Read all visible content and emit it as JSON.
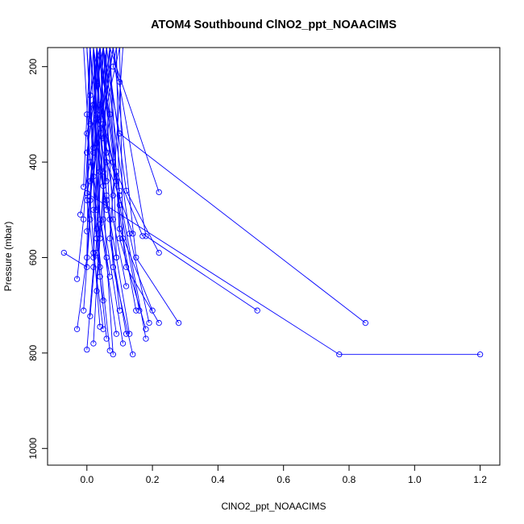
{
  "chart_data": {
    "type": "line",
    "title": "ATOM4 Southbound ClNO2_ppt_NOAACIMS",
    "xlabel": "ClNO2_ppt_NOAACIMS",
    "ylabel": "Pressure (mbar)",
    "xlim": [
      -0.12,
      1.26
    ],
    "ylim": [
      1035,
      160
    ],
    "y_reversed": true,
    "grid": false,
    "legend": "none",
    "x_ticks": [
      "0.0",
      "0.2",
      "0.4",
      "0.6",
      "0.8",
      "1.0",
      "1.2"
    ],
    "x_tick_values": [
      0,
      0.2,
      0.4,
      0.6,
      0.8,
      1.0,
      1.2
    ],
    "y_ticks": [
      "200",
      "400",
      "600",
      "800",
      "1000"
    ],
    "y_tick_values": [
      200,
      400,
      600,
      800,
      1000
    ],
    "series_color": "#0000ff",
    "marker": "open-circle",
    "profiles": [
      [
        [
          1.2,
          803
        ],
        [
          0.77,
          803
        ],
        [
          0.0,
          465
        ],
        [
          0.1,
          160
        ]
      ],
      [
        [
          0.85,
          737
        ],
        [
          0.1,
          340
        ],
        [
          0.05,
          160
        ]
      ],
      [
        [
          0.52,
          711
        ],
        [
          0.18,
          555
        ],
        [
          0.08,
          160
        ]
      ],
      [
        [
          0.22,
          463
        ],
        [
          0.07,
          160
        ]
      ],
      [
        [
          0.22,
          590
        ],
        [
          0.12,
          460
        ],
        [
          0.06,
          160
        ]
      ],
      [
        [
          0.28,
          737
        ],
        [
          0.15,
          600
        ],
        [
          0.08,
          160
        ]
      ],
      [
        [
          0.22,
          737
        ],
        [
          0.12,
          620
        ],
        [
          0.04,
          160
        ]
      ],
      [
        [
          0.2,
          711
        ],
        [
          0.1,
          540
        ],
        [
          0.09,
          160
        ]
      ],
      [
        [
          0.19,
          737
        ],
        [
          0.13,
          550
        ],
        [
          0.05,
          160
        ]
      ],
      [
        [
          0.18,
          770
        ],
        [
          0.1,
          470
        ],
        [
          0.04,
          160
        ]
      ],
      [
        [
          0.18,
          750
        ],
        [
          0.1,
          560
        ],
        [
          0.07,
          160
        ]
      ],
      [
        [
          0.17,
          555
        ],
        [
          0.09,
          420
        ],
        [
          0.05,
          160
        ]
      ],
      [
        [
          0.16,
          711
        ],
        [
          0.1,
          490
        ],
        [
          0.02,
          160
        ]
      ],
      [
        [
          0.14,
          803
        ],
        [
          0.08,
          620
        ],
        [
          0.04,
          160
        ]
      ],
      [
        [
          0.14,
          550
        ],
        [
          0.06,
          400
        ],
        [
          0.03,
          160
        ]
      ],
      [
        [
          0.12,
          760
        ],
        [
          0.07,
          560
        ],
        [
          0.11,
          160
        ]
      ],
      [
        [
          0.11,
          780
        ],
        [
          0.05,
          520
        ],
        [
          0.06,
          160
        ]
      ],
      [
        [
          0.1,
          711
        ],
        [
          0.06,
          470
        ],
        [
          0.02,
          160
        ]
      ],
      [
        [
          0.1,
          460
        ],
        [
          0.05,
          320
        ],
        [
          0.08,
          160
        ]
      ],
      [
        [
          0.09,
          440
        ],
        [
          0.03,
          300
        ],
        [
          0.04,
          160
        ]
      ],
      [
        [
          0.09,
          760
        ],
        [
          0.04,
          520
        ],
        [
          0.01,
          160
        ]
      ],
      [
        [
          0.08,
          803
        ],
        [
          0.06,
          600
        ],
        [
          0.03,
          160
        ]
      ],
      [
        [
          0.08,
          400
        ],
        [
          0.04,
          280
        ],
        [
          0.06,
          160
        ]
      ],
      [
        [
          0.07,
          795
        ],
        [
          0.03,
          540
        ],
        [
          0.05,
          160
        ]
      ],
      [
        [
          0.07,
          640
        ],
        [
          0.02,
          430
        ],
        [
          0.07,
          160
        ]
      ],
      [
        [
          0.06,
          500
        ],
        [
          0.03,
          360
        ],
        [
          0.02,
          160
        ]
      ],
      [
        [
          0.05,
          750
        ],
        [
          0.02,
          590
        ],
        [
          0.05,
          160
        ]
      ],
      [
        [
          0.05,
          420
        ],
        [
          0.07,
          300
        ],
        [
          0.03,
          160
        ]
      ],
      [
        [
          0.04,
          745
        ],
        [
          0.01,
          480
        ],
        [
          0.06,
          160
        ]
      ],
      [
        [
          0.04,
          560
        ],
        [
          0.06,
          380
        ],
        [
          0.04,
          160
        ]
      ],
      [
        [
          0.03,
          670
        ],
        [
          0.05,
          450
        ],
        [
          0.01,
          160
        ]
      ],
      [
        [
          0.03,
          500
        ],
        [
          0.0,
          340
        ],
        [
          0.05,
          160
        ]
      ],
      [
        [
          0.02,
          780
        ],
        [
          0.04,
          530
        ],
        [
          0.03,
          160
        ]
      ],
      [
        [
          0.02,
          370
        ],
        [
          0.01,
          260
        ],
        [
          0.04,
          160
        ]
      ],
      [
        [
          0.01,
          723
        ],
        [
          0.03,
          560
        ],
        [
          0.0,
          160
        ]
      ],
      [
        [
          0.01,
          440
        ],
        [
          0.03,
          310
        ],
        [
          0.02,
          160
        ]
      ],
      [
        [
          0.0,
          793
        ],
        [
          0.02,
          620
        ],
        [
          0.04,
          160
        ]
      ],
      [
        [
          0.0,
          545
        ],
        [
          0.02,
          380
        ],
        [
          0.0,
          160
        ]
      ],
      [
        [
          -0.01,
          711
        ],
        [
          0.01,
          520
        ],
        [
          0.03,
          160
        ]
      ],
      [
        [
          -0.01,
          452
        ],
        [
          0.0,
          300
        ],
        [
          0.01,
          160
        ]
      ],
      [
        [
          -0.02,
          510
        ],
        [
          0.01,
          400
        ],
        [
          -0.01,
          160
        ]
      ],
      [
        [
          -0.03,
          750
        ],
        [
          0.0,
          600
        ],
        [
          0.01,
          160
        ]
      ],
      [
        [
          -0.03,
          645
        ],
        [
          -0.01,
          520
        ],
        [
          0.02,
          160
        ]
      ],
      [
        [
          -0.07,
          590
        ],
        [
          0.0,
          620
        ],
        [
          0.03,
          160
        ]
      ],
      [
        [
          0.0,
          380
        ],
        [
          0.02,
          280
        ],
        [
          0.05,
          160
        ]
      ],
      [
        [
          0.01,
          320
        ],
        [
          0.03,
          240
        ],
        [
          0.02,
          160
        ]
      ],
      [
        [
          0.1,
          232
        ],
        [
          0.08,
          200
        ],
        [
          0.09,
          160
        ]
      ],
      [
        [
          0.15,
          711
        ],
        [
          0.11,
          560
        ],
        [
          0.1,
          160
        ]
      ],
      [
        [
          0.13,
          760
        ],
        [
          0.09,
          600
        ],
        [
          0.07,
          160
        ]
      ],
      [
        [
          0.06,
          770
        ],
        [
          0.04,
          640
        ],
        [
          0.02,
          160
        ]
      ],
      [
        [
          0.05,
          690
        ],
        [
          0.03,
          590
        ],
        [
          0.06,
          160
        ]
      ],
      [
        [
          0.04,
          620
        ],
        [
          0.02,
          500
        ],
        [
          0.03,
          160
        ]
      ],
      [
        [
          0.09,
          600
        ],
        [
          0.06,
          480
        ],
        [
          0.04,
          160
        ]
      ],
      [
        [
          0.08,
          470
        ],
        [
          0.05,
          350
        ],
        [
          0.07,
          160
        ]
      ],
      [
        [
          0.07,
          520
        ],
        [
          0.04,
          420
        ],
        [
          0.02,
          160
        ]
      ],
      [
        [
          0.12,
          660
        ],
        [
          0.08,
          520
        ],
        [
          0.05,
          160
        ]
      ],
      [
        [
          0.06,
          440
        ],
        [
          0.04,
          330
        ],
        [
          0.08,
          160
        ]
      ],
      [
        [
          0.02,
          600
        ],
        [
          0.0,
          480
        ],
        [
          0.01,
          160
        ]
      ]
    ]
  }
}
